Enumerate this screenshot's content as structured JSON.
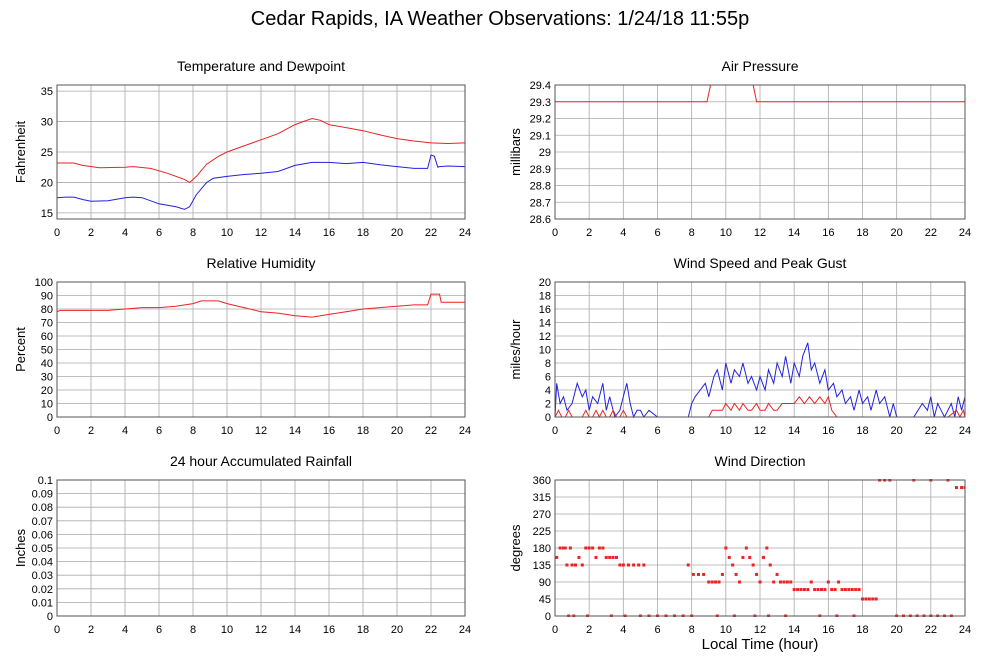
{
  "page": {
    "title": "Cedar Rapids, IA Weather Observations: 1/24/18 11:55p",
    "xlabel": "Local Time (hour)"
  },
  "colors": {
    "red": "#ee2222",
    "blue": "#2222dd",
    "grid": "#aaaaaa",
    "frame": "#555555"
  },
  "chart_data": [
    {
      "type": "line",
      "title": "Temperature and Dewpoint",
      "ylabel": "Fahrenheit",
      "xlim": [
        0,
        24
      ],
      "ylim": [
        14,
        36
      ],
      "xticks": [
        0,
        2,
        4,
        6,
        8,
        10,
        12,
        14,
        16,
        18,
        20,
        22,
        24
      ],
      "yticks": [
        15,
        20,
        25,
        30,
        35
      ],
      "grid": true,
      "series": [
        {
          "color": "red",
          "x": [
            0,
            1,
            1.5,
            2.5,
            4,
            4.5,
            5.5,
            6.5,
            7.5,
            7.8,
            8.2,
            8.8,
            9.5,
            10,
            11,
            12,
            13,
            14,
            14.5,
            15,
            15.5,
            16,
            17,
            18,
            19,
            20,
            21,
            22,
            23,
            24
          ],
          "y": [
            23.2,
            23.2,
            22.8,
            22.4,
            22.5,
            22.6,
            22.3,
            21.5,
            20.5,
            20.0,
            21.0,
            23.0,
            24.3,
            25.0,
            26.0,
            27.0,
            28.0,
            29.5,
            30.0,
            30.5,
            30.2,
            29.5,
            29.0,
            28.5,
            27.8,
            27.2,
            26.8,
            26.5,
            26.4,
            26.5
          ]
        },
        {
          "color": "blue",
          "x": [
            0,
            0.5,
            1,
            1.5,
            2,
            3,
            4,
            4.5,
            5,
            6,
            7,
            7.5,
            7.8,
            8.2,
            8.8,
            9.2,
            10,
            11,
            12,
            13,
            14,
            15,
            16,
            17,
            18,
            19,
            20,
            21,
            21.8,
            22,
            22.2,
            22.4,
            22.5,
            23,
            24
          ],
          "y": [
            17.5,
            17.6,
            17.6,
            17.2,
            16.9,
            17.0,
            17.5,
            17.6,
            17.5,
            16.5,
            16.0,
            15.6,
            16.0,
            18.0,
            20.0,
            20.7,
            21.0,
            21.3,
            21.5,
            21.8,
            22.8,
            23.3,
            23.3,
            23.1,
            23.3,
            22.9,
            22.6,
            22.3,
            22.3,
            24.5,
            24.3,
            22.5,
            22.6,
            22.7,
            22.6
          ]
        }
      ]
    },
    {
      "type": "line",
      "title": "Air Pressure",
      "ylabel": "millibars",
      "xlim": [
        0,
        24
      ],
      "ylim": [
        28.6,
        29.4
      ],
      "xticks": [
        0,
        2,
        4,
        6,
        8,
        10,
        12,
        14,
        16,
        18,
        20,
        22,
        24
      ],
      "yticks": [
        28.6,
        28.7,
        28.8,
        28.9,
        29.0,
        29.1,
        29.2,
        29.3,
        29.4
      ],
      "grid": true,
      "series": [
        {
          "color": "red",
          "x": [
            0,
            8.9,
            9.1,
            11.6,
            11.8,
            24
          ],
          "y": [
            29.3,
            29.3,
            29.4,
            29.4,
            29.3,
            29.3
          ]
        }
      ]
    },
    {
      "type": "line",
      "title": "Relative Humidity",
      "ylabel": "Percent",
      "xlim": [
        0,
        24
      ],
      "ylim": [
        0,
        100
      ],
      "xticks": [
        0,
        2,
        4,
        6,
        8,
        10,
        12,
        14,
        16,
        18,
        20,
        22,
        24
      ],
      "yticks": [
        0,
        10,
        20,
        30,
        40,
        50,
        60,
        70,
        80,
        90,
        100
      ],
      "grid": true,
      "series": [
        {
          "color": "red",
          "x": [
            0,
            0.2,
            2,
            3,
            4,
            5,
            6,
            7,
            8,
            8.5,
            9,
            9.5,
            10,
            11,
            12,
            13,
            14,
            15,
            16,
            17,
            18,
            19,
            20,
            21,
            21.8,
            22,
            22.5,
            22.6,
            23,
            24
          ],
          "y": [
            78,
            79,
            79,
            79,
            80,
            81,
            81,
            82,
            84,
            86,
            86,
            86,
            84,
            81,
            78,
            77,
            75,
            74,
            76,
            78,
            80,
            81,
            82,
            83,
            83,
            91,
            91,
            85,
            85,
            85
          ]
        }
      ]
    },
    {
      "type": "line",
      "title": "Wind Speed and Peak Gust",
      "ylabel": "miles/hour",
      "xlim": [
        0,
        24
      ],
      "ylim": [
        0,
        20
      ],
      "xticks": [
        0,
        2,
        4,
        6,
        8,
        10,
        12,
        14,
        16,
        18,
        20,
        22,
        24
      ],
      "yticks": [
        0,
        2,
        4,
        6,
        8,
        10,
        12,
        14,
        16,
        18,
        20
      ],
      "grid": true,
      "series": [
        {
          "color": "blue",
          "x": [
            0,
            0.1,
            0.3,
            0.5,
            0.7,
            1,
            1.3,
            1.6,
            1.8,
            2,
            2.2,
            2.5,
            2.8,
            3,
            3.2,
            3.5,
            3.8,
            4,
            4.2,
            4.4,
            4.6,
            4.8,
            5,
            5.2,
            5.5,
            6,
            7,
            7.8,
            8,
            8.2,
            8.5,
            8.8,
            9,
            9.3,
            9.5,
            9.8,
            10,
            10.3,
            10.5,
            10.8,
            11,
            11.3,
            11.5,
            11.8,
            12,
            12.3,
            12.5,
            12.8,
            13,
            13.3,
            13.5,
            13.8,
            14,
            14.3,
            14.5,
            14.8,
            15,
            15.2,
            15.5,
            15.8,
            16,
            16.3,
            16.5,
            16.8,
            17,
            17.3,
            17.5,
            17.8,
            18,
            18.3,
            18.5,
            18.8,
            19,
            19.3,
            19.6,
            19.8,
            20,
            21,
            21.5,
            21.8,
            22,
            22.2,
            22.4,
            22.6,
            22.8,
            23,
            23.2,
            23.4,
            23.6,
            23.8,
            24
          ],
          "y": [
            0,
            5,
            2,
            3,
            1,
            2,
            5,
            3,
            4,
            1,
            3,
            2,
            5,
            1,
            3,
            0,
            1,
            3,
            5,
            2,
            0,
            1,
            1,
            0,
            1,
            0,
            0,
            0,
            2,
            3,
            4,
            5,
            3,
            6,
            7,
            4,
            8,
            5,
            7,
            6,
            8,
            5,
            6,
            4,
            6,
            4,
            7,
            5,
            8,
            6,
            9,
            5,
            8,
            6,
            9,
            11,
            7,
            8,
            5,
            7,
            4,
            5,
            3,
            4,
            2,
            3,
            1,
            4,
            2,
            3,
            1,
            4,
            2,
            3,
            0,
            2,
            0,
            0,
            2,
            1,
            3,
            0,
            2,
            1,
            0,
            1,
            2,
            0,
            3,
            1,
            3
          ]
        },
        {
          "color": "red",
          "x": [
            0,
            0.2,
            0.4,
            0.6,
            0.8,
            1,
            1.6,
            1.8,
            2,
            2.2,
            2.4,
            2.6,
            2.8,
            3,
            3.2,
            3.4,
            3.6,
            3.8,
            4,
            4.2,
            8,
            9,
            9.2,
            9.5,
            9.8,
            10,
            10.3,
            10.5,
            10.8,
            11,
            11.3,
            11.5,
            11.8,
            12,
            12.3,
            12.5,
            12.8,
            13,
            13.3,
            13.6,
            14,
            14.3,
            14.6,
            14.9,
            15.2,
            15.5,
            15.8,
            16,
            16.2,
            16.5,
            17,
            22,
            23,
            23.5,
            23.7,
            23.9,
            24
          ],
          "y": [
            0,
            1,
            0,
            0,
            1,
            0,
            0,
            1,
            0,
            0,
            1,
            0,
            1,
            0,
            0,
            1,
            0,
            0,
            1,
            0,
            0,
            0,
            1,
            1,
            1,
            2,
            1,
            2,
            1,
            2,
            1,
            1,
            2,
            1,
            1,
            2,
            1,
            1,
            2,
            2,
            2,
            3,
            2,
            3,
            2,
            3,
            2,
            3,
            1,
            0,
            0,
            0,
            0,
            1,
            0,
            1,
            0
          ]
        }
      ]
    },
    {
      "type": "line",
      "title": "24 hour Accumulated Rainfall",
      "ylabel": "Inches",
      "xlim": [
        0,
        24
      ],
      "ylim": [
        0,
        0.1
      ],
      "xticks": [
        0,
        2,
        4,
        6,
        8,
        10,
        12,
        14,
        16,
        18,
        20,
        22,
        24
      ],
      "yticks": [
        0.0,
        0.01,
        0.02,
        0.03,
        0.04,
        0.05,
        0.06,
        0.07,
        0.08,
        0.09,
        0.1
      ],
      "grid": true,
      "series": [
        {
          "color": "blue",
          "x": [
            0,
            24
          ],
          "y": [
            0,
            0
          ]
        },
        {
          "color": "red",
          "x": [
            0,
            24
          ],
          "y": [
            0,
            0
          ]
        }
      ]
    },
    {
      "type": "scatter",
      "title": "Wind Direction",
      "ylabel": "degrees",
      "xlim": [
        0,
        24
      ],
      "ylim": [
        0,
        360
      ],
      "xticks": [
        0,
        2,
        4,
        6,
        8,
        10,
        12,
        14,
        16,
        18,
        20,
        22,
        24
      ],
      "yticks": [
        0,
        45,
        90,
        135,
        180,
        225,
        270,
        315,
        360
      ],
      "grid": true,
      "series": [
        {
          "color": "red",
          "x": [
            0.1,
            0.3,
            0.5,
            0.6,
            0.7,
            0.9,
            1.0,
            1.2,
            1.4,
            1.6,
            1.8,
            2.0,
            2.2,
            2.4,
            2.6,
            2.8,
            3.0,
            3.2,
            3.4,
            3.6,
            3.8,
            4.0,
            4.3,
            4.6,
            4.9,
            5.2,
            0.8,
            1.1,
            1.9,
            3.3,
            4.1,
            5.0,
            5.5,
            6.0,
            6.5,
            7.0,
            7.5,
            8.0,
            7.8,
            8.1,
            8.4,
            8.7,
            9.0,
            9.2,
            9.4,
            9.6,
            9.8,
            10.0,
            10.2,
            10.4,
            10.6,
            10.8,
            11.0,
            11.2,
            11.4,
            11.6,
            11.8,
            12.0,
            12.2,
            12.4,
            12.6,
            12.8,
            13.0,
            13.2,
            13.4,
            13.6,
            13.8,
            14.0,
            14.2,
            14.4,
            14.6,
            14.8,
            15.0,
            15.2,
            15.4,
            15.6,
            15.8,
            16.0,
            16.2,
            16.4,
            16.6,
            16.8,
            17.0,
            17.2,
            17.4,
            17.6,
            17.8,
            18.0,
            18.2,
            18.4,
            18.6,
            18.8,
            19.0,
            19.3,
            19.6,
            20.0,
            20.4,
            20.8,
            21.2,
            21.6,
            22.0,
            22.4,
            22.8,
            23.2,
            21.0,
            22.0,
            23.0,
            23.5,
            23.8,
            24.0,
            17.5,
            16.5,
            15.5,
            9.5,
            10.5,
            11.7,
            12.5,
            13.5
          ],
          "y": [
            155,
            180,
            180,
            180,
            135,
            180,
            135,
            135,
            155,
            135,
            180,
            180,
            180,
            155,
            180,
            180,
            155,
            155,
            155,
            155,
            135,
            135,
            135,
            135,
            135,
            135,
            0,
            0,
            0,
            0,
            0,
            0,
            0,
            0,
            0,
            0,
            0,
            0,
            135,
            110,
            110,
            110,
            90,
            90,
            90,
            90,
            110,
            180,
            155,
            135,
            110,
            90,
            155,
            180,
            155,
            135,
            110,
            90,
            155,
            180,
            135,
            90,
            110,
            90,
            90,
            90,
            90,
            70,
            70,
            70,
            70,
            70,
            90,
            70,
            70,
            70,
            70,
            90,
            70,
            70,
            90,
            70,
            70,
            70,
            70,
            70,
            70,
            45,
            45,
            45,
            45,
            45,
            360,
            360,
            360,
            0,
            0,
            0,
            0,
            0,
            0,
            0,
            0,
            0,
            360,
            360,
            360,
            340,
            340,
            340,
            0,
            0,
            0,
            0,
            0,
            0,
            0,
            0
          ]
        }
      ]
    }
  ]
}
